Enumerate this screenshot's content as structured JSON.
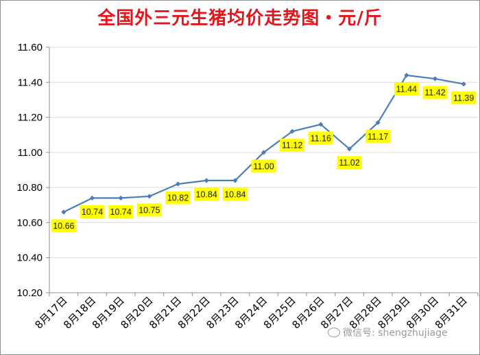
{
  "chart_data": {
    "type": "line",
    "title": "全国外三元生猪均价走势图・元/斤",
    "categories": [
      "8月17日",
      "8月18日",
      "8月19日",
      "8月20日",
      "8月21日",
      "8月22日",
      "8月23日",
      "8月24日",
      "8月25日",
      "8月26日",
      "8月27日",
      "8月28日",
      "8月29日",
      "8月30日",
      "8月31日"
    ],
    "values": [
      10.66,
      10.74,
      10.74,
      10.75,
      10.82,
      10.84,
      10.84,
      11.0,
      11.12,
      11.16,
      11.02,
      11.17,
      11.44,
      11.42,
      11.39
    ],
    "data_labels": [
      "10.66",
      "10.74",
      "10.74",
      "10.75",
      "10.82",
      "10.84",
      "10.84",
      "11.00",
      "11.12",
      "11.16",
      "11.02",
      "11.17",
      "11.44",
      "11.42",
      "11.39"
    ],
    "yticks": [
      "10.20",
      "10.40",
      "10.60",
      "10.80",
      "11.00",
      "11.20",
      "11.40",
      "11.60"
    ],
    "ylim": [
      10.2,
      11.6
    ],
    "xlabel": "",
    "ylabel": "",
    "grid": true,
    "legend": "none",
    "colors": {
      "line": "#4a7ebb",
      "label_bg": "#ffff00",
      "title": "#e8121a",
      "grid": "#d9d9d9"
    }
  },
  "watermark": {
    "text": "微信号: shengzhujiage",
    "icon": "wechat-icon"
  }
}
